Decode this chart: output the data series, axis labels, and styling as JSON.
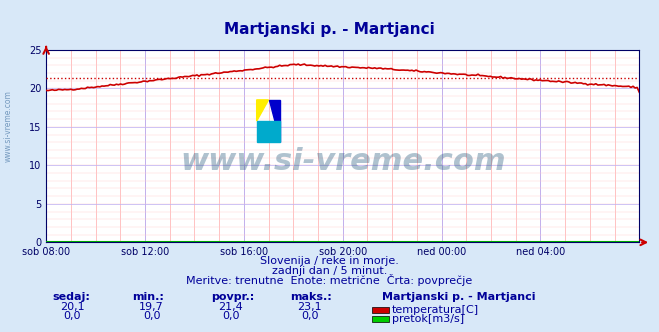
{
  "title": "Martjanski p. - Martjanci",
  "title_color": "#000099",
  "background_color": "#d8e8f8",
  "plot_bg_color": "#ffffff",
  "grid_color_major": "#0000ff",
  "grid_color_minor": "#ffcccc",
  "x_labels": [
    "sob 08:00",
    "sob 12:00",
    "sob 16:00",
    "sob 20:00",
    "ned 00:00",
    "ned 04:00"
  ],
  "x_ticks_norm": [
    0.0,
    0.1667,
    0.3333,
    0.5,
    0.6667,
    0.8333
  ],
  "ylim": [
    0,
    25
  ],
  "yticks": [
    0,
    5,
    10,
    15,
    20,
    25
  ],
  "temp_avg": 21.4,
  "temp_color": "#cc0000",
  "temp_avg_color": "#cc0000",
  "flow_color": "#00aa00",
  "watermark_text": "www.si-vreme.com",
  "watermark_color": "#1a5276",
  "watermark_alpha": 0.35,
  "subtitle1": "Slovenija / reke in morje.",
  "subtitle2": "zadnji dan / 5 minut.",
  "subtitle3": "Meritve: trenutne  Enote: metrične  Črta: povprečje",
  "subtitle_color": "#000099",
  "legend_title": "Martjanski p. - Martjanci",
  "legend_title_color": "#000099",
  "legend_items": [
    {
      "label": "temperatura[C]",
      "color": "#cc0000"
    },
    {
      "label": "pretok[m3/s]",
      "color": "#00cc00"
    }
  ],
  "stats_headers": [
    "sedaj:",
    "min.:",
    "povpr.:",
    "maks.:"
  ],
  "stats_temp": [
    "20,1",
    "19,7",
    "21,4",
    "23,1"
  ],
  "stats_flow": [
    "0,0",
    "0,0",
    "0,0",
    "0,0"
  ],
  "stats_color": "#000099"
}
